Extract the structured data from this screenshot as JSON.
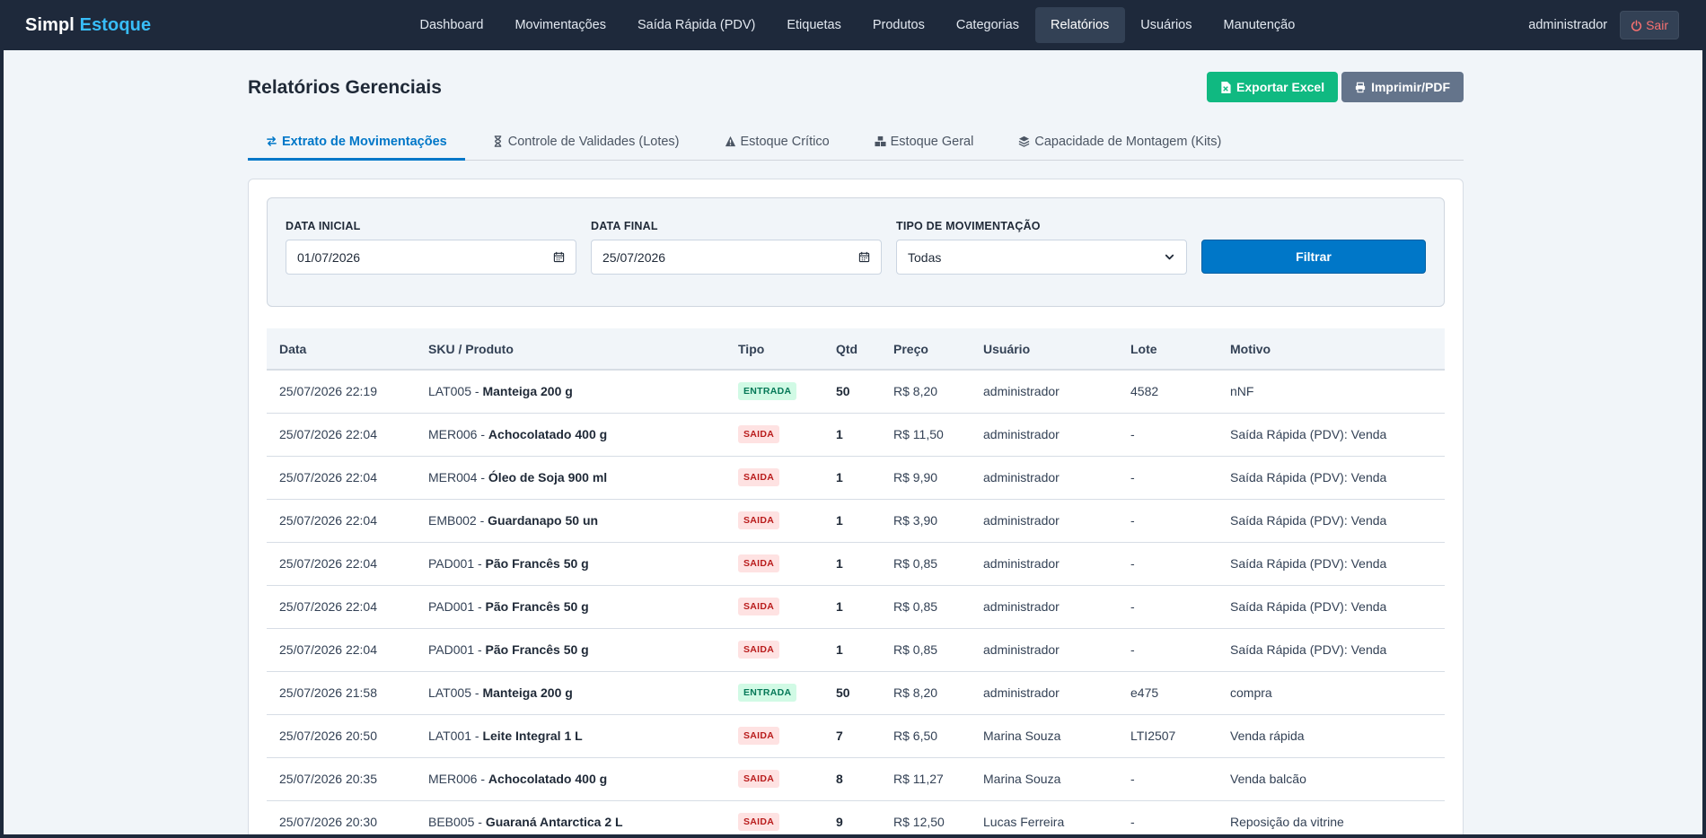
{
  "brand": {
    "name": "Simpl",
    "accent": "Estoque"
  },
  "nav": {
    "items": [
      {
        "label": "Dashboard"
      },
      {
        "label": "Movimentações"
      },
      {
        "label": "Saída Rápida (PDV)"
      },
      {
        "label": "Etiquetas"
      },
      {
        "label": "Produtos"
      },
      {
        "label": "Categorias"
      },
      {
        "label": "Relatórios",
        "active": true
      },
      {
        "label": "Usuários"
      },
      {
        "label": "Manutenção"
      }
    ],
    "user": "administrador",
    "logout_label": "Sair",
    "logout_icon": "power-icon"
  },
  "page": {
    "title": "Relatórios Gerenciais",
    "export_excel_label": "Exportar Excel",
    "export_excel_icon": "file-excel-icon",
    "print_label": "Imprimir/PDF",
    "print_icon": "printer-icon"
  },
  "tabs": [
    {
      "label": "Extrato de Movimentações",
      "icon": "exchange-icon",
      "active": true
    },
    {
      "label": "Controle de Validades (Lotes)",
      "icon": "hourglass-icon"
    },
    {
      "label": "Estoque Crítico",
      "icon": "warning-icon"
    },
    {
      "label": "Estoque Geral",
      "icon": "boxes-icon"
    },
    {
      "label": "Capacidade de Montagem (Kits)",
      "icon": "layers-icon"
    }
  ],
  "filters": {
    "start_label": "DATA INICIAL",
    "start_value": "01/07/2026",
    "end_label": "DATA FINAL",
    "end_value": "25/07/2026",
    "type_label": "TIPO DE MOVIMENTAÇÃO",
    "type_value": "Todas",
    "filter_button": "Filtrar"
  },
  "table": {
    "headers": [
      "Data",
      "SKU / Produto",
      "Tipo",
      "Qtd",
      "Preço",
      "Usuário",
      "Lote",
      "Motivo"
    ],
    "rows": [
      {
        "data": "25/07/2026 22:19",
        "sku": "LAT005 - ",
        "produto": "Manteiga 200 g",
        "tipo": "ENTRADA",
        "qtd": "50",
        "preco": "R$ 8,20",
        "usuario": "administrador",
        "lote": "4582",
        "motivo": "nNF"
      },
      {
        "data": "25/07/2026 22:04",
        "sku": "MER006 - ",
        "produto": "Achocolatado 400 g",
        "tipo": "SAIDA",
        "qtd": "1",
        "preco": "R$ 11,50",
        "usuario": "administrador",
        "lote": "-",
        "motivo": "Saída Rápida (PDV): Venda"
      },
      {
        "data": "25/07/2026 22:04",
        "sku": "MER004 - ",
        "produto": "Óleo de Soja 900 ml",
        "tipo": "SAIDA",
        "qtd": "1",
        "preco": "R$ 9,90",
        "usuario": "administrador",
        "lote": "-",
        "motivo": "Saída Rápida (PDV): Venda"
      },
      {
        "data": "25/07/2026 22:04",
        "sku": "EMB002 - ",
        "produto": "Guardanapo 50 un",
        "tipo": "SAIDA",
        "qtd": "1",
        "preco": "R$ 3,90",
        "usuario": "administrador",
        "lote": "-",
        "motivo": "Saída Rápida (PDV): Venda"
      },
      {
        "data": "25/07/2026 22:04",
        "sku": "PAD001 - ",
        "produto": "Pão Francês 50 g",
        "tipo": "SAIDA",
        "qtd": "1",
        "preco": "R$ 0,85",
        "usuario": "administrador",
        "lote": "-",
        "motivo": "Saída Rápida (PDV): Venda"
      },
      {
        "data": "25/07/2026 22:04",
        "sku": "PAD001 - ",
        "produto": "Pão Francês 50 g",
        "tipo": "SAIDA",
        "qtd": "1",
        "preco": "R$ 0,85",
        "usuario": "administrador",
        "lote": "-",
        "motivo": "Saída Rápida (PDV): Venda"
      },
      {
        "data": "25/07/2026 22:04",
        "sku": "PAD001 - ",
        "produto": "Pão Francês 50 g",
        "tipo": "SAIDA",
        "qtd": "1",
        "preco": "R$ 0,85",
        "usuario": "administrador",
        "lote": "-",
        "motivo": "Saída Rápida (PDV): Venda"
      },
      {
        "data": "25/07/2026 21:58",
        "sku": "LAT005 - ",
        "produto": "Manteiga 200 g",
        "tipo": "ENTRADA",
        "qtd": "50",
        "preco": "R$ 8,20",
        "usuario": "administrador",
        "lote": "e475",
        "motivo": "compra"
      },
      {
        "data": "25/07/2026 20:50",
        "sku": "LAT001 - ",
        "produto": "Leite Integral 1 L",
        "tipo": "SAIDA",
        "qtd": "7",
        "preco": "R$ 6,50",
        "usuario": "Marina Souza",
        "lote": "LTI2507",
        "motivo": "Venda rápida"
      },
      {
        "data": "25/07/2026 20:35",
        "sku": "MER006 - ",
        "produto": "Achocolatado 400 g",
        "tipo": "SAIDA",
        "qtd": "8",
        "preco": "R$ 11,27",
        "usuario": "Marina Souza",
        "lote": "-",
        "motivo": "Venda balcão"
      },
      {
        "data": "25/07/2026 20:30",
        "sku": "BEB005 - ",
        "produto": "Guaraná Antarctica 2 L",
        "tipo": "SAIDA",
        "qtd": "9",
        "preco": "R$ 12,50",
        "usuario": "Lucas Ferreira",
        "lote": "-",
        "motivo": "Reposição da vitrine"
      }
    ]
  },
  "colors": {
    "navbar": "#1e293b",
    "brand_accent": "#38bdf8",
    "primary": "#0077c8",
    "excel": "#10b981",
    "pdf": "#64748b",
    "entrada_bg": "#d1fae5",
    "saida_bg": "#fee2e2"
  }
}
